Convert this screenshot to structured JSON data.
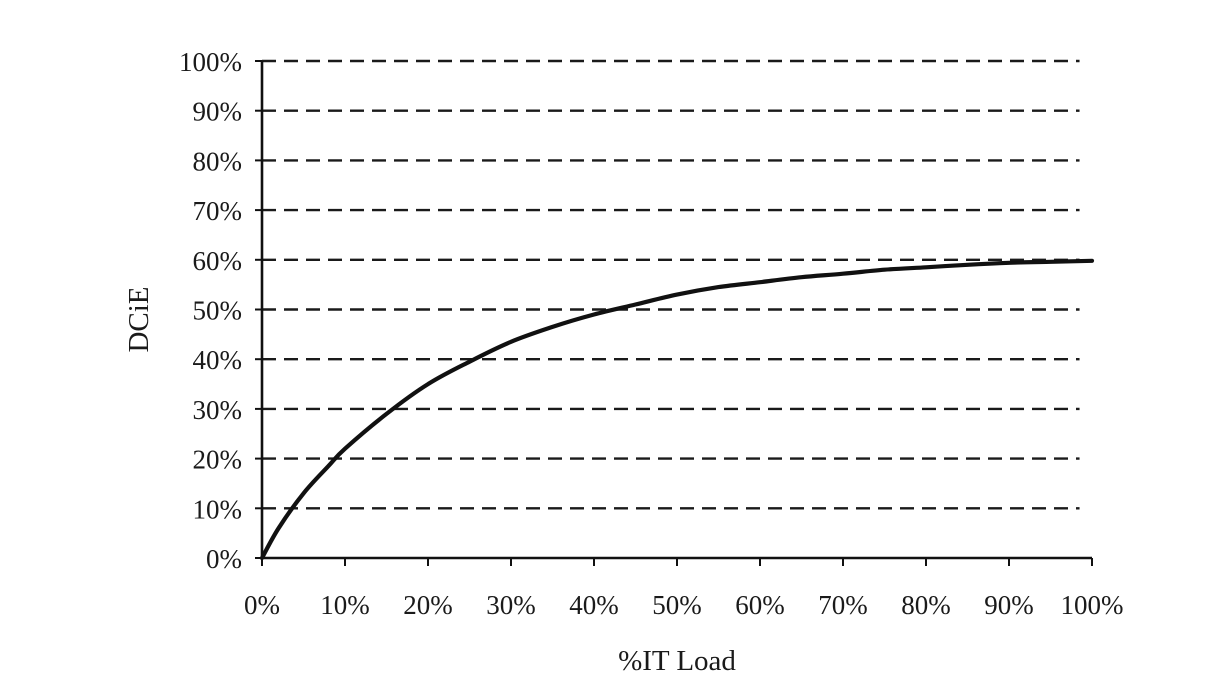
{
  "chart_data": {
    "type": "line",
    "title": "",
    "xlabel": "%IT  Load",
    "ylabel": "DCiE",
    "xlim": [
      0,
      100
    ],
    "ylim": [
      0,
      100
    ],
    "x_ticks": [
      "0%",
      "10%",
      "20%",
      "30%",
      "40%",
      "50%",
      "60%",
      "70%",
      "80%",
      "90%",
      "100%"
    ],
    "y_ticks": [
      "0%",
      "10%",
      "20%",
      "30%",
      "40%",
      "50%",
      "60%",
      "70%",
      "80%",
      "90%",
      "100%"
    ],
    "grid": "horizontal-dashed",
    "legend": "none",
    "series": [
      {
        "x": [
          0,
          2,
          5,
          8,
          10,
          15,
          20,
          25,
          30,
          35,
          40,
          45,
          50,
          55,
          60,
          65,
          70,
          75,
          80,
          85,
          90,
          95,
          100
        ],
        "y": [
          0,
          6,
          13,
          18.5,
          22,
          29,
          35,
          39.5,
          43.5,
          46.5,
          49,
          51,
          53,
          54.5,
          55.5,
          56.5,
          57.2,
          58,
          58.5,
          59,
          59.4,
          59.6,
          59.8
        ]
      }
    ],
    "colors": {
      "line": "#111111",
      "grid": "#1a1a1a",
      "axis": "#111111",
      "text": "#1a1a1a"
    }
  }
}
